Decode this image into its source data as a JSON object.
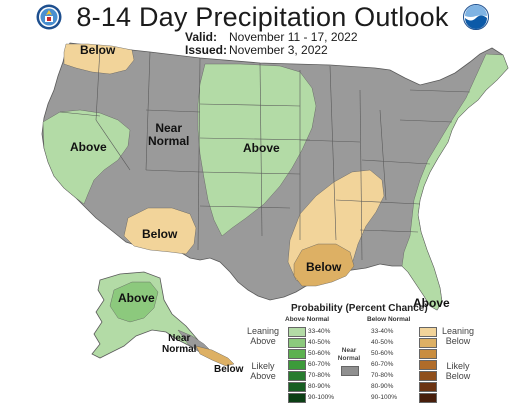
{
  "header": {
    "title": "8-14 Day Precipitation Outlook",
    "valid_label": "Valid:",
    "valid_value": "November 11 - 17, 2022",
    "issued_label": "Issued:",
    "issued_value": "November 3, 2022"
  },
  "map_labels": {
    "below_nw": "Below",
    "above_west": "Above",
    "near_normal_line1": "Near",
    "near_normal_line2": "Normal",
    "above_plains": "Above",
    "below_sw": "Below",
    "below_gulf": "Below",
    "above_fl": "Above",
    "above_ak": "Above",
    "near_ak_line1": "Near",
    "near_ak_line2": "Normal",
    "below_ak": "Below"
  },
  "legend": {
    "title": "Probability (Percent Chance)",
    "above_heading": "Above Normal",
    "below_heading": "Below Normal",
    "near_heading_line1": "Near",
    "near_heading_line2": "Normal",
    "leaning_above_line1": "Leaning",
    "leaning_above_line2": "Above",
    "likely_above_line1": "Likely",
    "likely_above_line2": "Above",
    "leaning_below_line1": "Leaning",
    "leaning_below_line2": "Below",
    "likely_below_line1": "Likely",
    "likely_below_line2": "Below",
    "above_bins": [
      {
        "label": "33-40%",
        "color": "#b3dba6"
      },
      {
        "label": "40-50%",
        "color": "#8cc97d"
      },
      {
        "label": "50-60%",
        "color": "#5cb14f"
      },
      {
        "label": "60-70%",
        "color": "#3c9a3a"
      },
      {
        "label": "70-80%",
        "color": "#277c2e"
      },
      {
        "label": "80-90%",
        "color": "#175e22"
      },
      {
        "label": "90-100%",
        "color": "#0b3f14"
      }
    ],
    "below_bins": [
      {
        "label": "33-40%",
        "color": "#f2d49a"
      },
      {
        "label": "40-50%",
        "color": "#ddb064"
      },
      {
        "label": "50-60%",
        "color": "#c98d3f"
      },
      {
        "label": "60-70%",
        "color": "#b06c2a"
      },
      {
        "label": "70-80%",
        "color": "#8f4f1c"
      },
      {
        "label": "80-90%",
        "color": "#6b3312"
      },
      {
        "label": "90-100%",
        "color": "#471e0b"
      }
    ],
    "near_color": "#8f8f8f"
  },
  "colors": {
    "near_normal": "#9a9a9a",
    "above_light": "#b3dba6",
    "above_medium": "#8cc97d",
    "below_light": "#f2d49a",
    "below_medium": "#ddb064",
    "state_border": "#5a5a5a"
  },
  "logos": {
    "left": "doc-seal-icon",
    "right": "noaa-logo-icon"
  }
}
